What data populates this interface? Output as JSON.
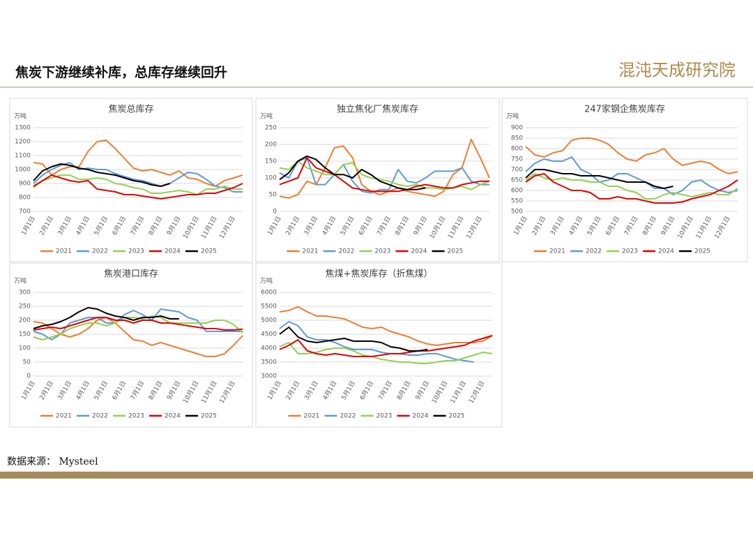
{
  "header": {
    "title": "焦炭下游继续补库，总库存继续回升",
    "logo": "混沌天成研究院"
  },
  "footer": {
    "source": "数据来源： Mysteel"
  },
  "chart_data": [
    {
      "type": "line",
      "title": "焦炭总库存",
      "y_label": "万吨",
      "categories": [
        "1月1日",
        null,
        "2月1日",
        null,
        "3月1日",
        null,
        "4月1日",
        null,
        "5月1日",
        null,
        "6月1日",
        null,
        "7月1日",
        null,
        "8月1日",
        null,
        "9月1日",
        null,
        "10月1日",
        null,
        "11月1日",
        null,
        "12月1日",
        null
      ],
      "ylim": [
        700,
        1300
      ],
      "yticks": [
        700,
        800,
        900,
        1000,
        1100,
        1200,
        1300
      ],
      "grid": true,
      "series": [
        {
          "name": "2021",
          "color": "#ED7D31",
          "values": [
            1050,
            1040,
            960,
            1000,
            1020,
            1020,
            1130,
            1200,
            1210,
            1150,
            1080,
            1010,
            990,
            1000,
            980,
            960,
            990,
            940,
            930,
            900,
            880,
            920,
            940,
            960
          ]
        },
        {
          "name": "2022",
          "color": "#5B9BD5",
          "values": [
            900,
            960,
            1000,
            1030,
            1050,
            1000,
            1010,
            1000,
            1000,
            970,
            950,
            930,
            920,
            900,
            880,
            900,
            940,
            980,
            970,
            930,
            880,
            870,
            840,
            840
          ]
        },
        {
          "name": "2023",
          "color": "#92D050",
          "values": [
            870,
            920,
            940,
            960,
            960,
            930,
            930,
            940,
            930,
            900,
            890,
            870,
            860,
            830,
            830,
            840,
            850,
            840,
            820,
            860,
            860,
            880,
            860,
            860
          ]
        },
        {
          "name": "2024",
          "color": "#E00000",
          "values": [
            880,
            920,
            960,
            940,
            920,
            910,
            920,
            860,
            850,
            840,
            820,
            820,
            810,
            800,
            790,
            800,
            810,
            820,
            820,
            830,
            830,
            850,
            870,
            900
          ]
        },
        {
          "name": "2025",
          "color": "#000000",
          "values": [
            920,
            990,
            1020,
            1040,
            1030,
            1010,
            1000,
            980,
            970,
            960,
            940,
            920,
            910,
            890,
            880,
            900,
            null,
            null,
            null,
            null,
            null,
            null,
            null,
            null
          ]
        }
      ]
    },
    {
      "type": "line",
      "title": "独立焦化厂焦炭库存",
      "y_label": "万吨",
      "categories": [
        "1月1日",
        null,
        "2月1日",
        null,
        "3月1日",
        null,
        "4月1日",
        null,
        "5月1日",
        null,
        "6月1日",
        null,
        "7月1日",
        null,
        "8月1日",
        null,
        "9月1日",
        null,
        "10月1日",
        null,
        "11月1日",
        null,
        "12月1日",
        null
      ],
      "ylim": [
        0,
        250
      ],
      "yticks": [
        0,
        50,
        100,
        150,
        200,
        250
      ],
      "grid": true,
      "series": [
        {
          "name": "2021",
          "color": "#ED7D31",
          "values": [
            45,
            40,
            50,
            90,
            80,
            130,
            190,
            195,
            160,
            80,
            60,
            50,
            60,
            70,
            60,
            55,
            50,
            45,
            60,
            110,
            130,
            215,
            160,
            100
          ]
        },
        {
          "name": "2022",
          "color": "#5B9BD5",
          "values": [
            115,
            100,
            150,
            160,
            80,
            80,
            110,
            140,
            90,
            60,
            55,
            65,
            65,
            125,
            90,
            85,
            100,
            120,
            120,
            120,
            130,
            90,
            80,
            80
          ]
        },
        {
          "name": "2023",
          "color": "#92D050",
          "values": [
            130,
            125,
            150,
            130,
            120,
            110,
            110,
            140,
            145,
            110,
            100,
            95,
            90,
            80,
            75,
            80,
            70,
            70,
            65,
            70,
            75,
            65,
            80,
            90
          ]
        },
        {
          "name": "2024",
          "color": "#E00000",
          "values": [
            80,
            90,
            100,
            160,
            130,
            120,
            110,
            90,
            70,
            65,
            60,
            60,
            60,
            60,
            65,
            75,
            80,
            75,
            70,
            70,
            80,
            85,
            90,
            90
          ]
        },
        {
          "name": "2025",
          "color": "#000000",
          "values": [
            95,
            115,
            150,
            165,
            155,
            130,
            110,
            110,
            100,
            125,
            110,
            90,
            80,
            70,
            65,
            65,
            70,
            null,
            null,
            null,
            null,
            null,
            null,
            null
          ]
        }
      ]
    },
    {
      "type": "line",
      "title": "247家钢企焦炭库存",
      "y_label": "万吨",
      "categories": [
        "1月1日",
        null,
        "2月1日",
        null,
        "3月1日",
        null,
        "4月1日",
        null,
        "5月1日",
        null,
        "6月1日",
        null,
        "7月1日",
        null,
        "8月1日",
        null,
        "9月1日",
        null,
        "10月1日",
        null,
        "11月1日",
        null,
        "12月1日",
        null
      ],
      "ylim": [
        500,
        900
      ],
      "yticks": [
        500,
        550,
        600,
        650,
        700,
        750,
        800,
        850,
        900
      ],
      "grid": true,
      "series": [
        {
          "name": "2021",
          "color": "#ED7D31",
          "values": [
            810,
            770,
            760,
            780,
            790,
            840,
            850,
            850,
            840,
            820,
            780,
            750,
            740,
            770,
            780,
            800,
            750,
            720,
            730,
            740,
            730,
            700,
            680,
            690
          ]
        },
        {
          "name": "2022",
          "color": "#5B9BD5",
          "values": [
            690,
            730,
            750,
            740,
            740,
            760,
            700,
            680,
            640,
            650,
            680,
            680,
            660,
            640,
            610,
            610,
            580,
            600,
            640,
            650,
            620,
            600,
            590,
            600
          ]
        },
        {
          "name": "2023",
          "color": "#92D050",
          "values": [
            650,
            680,
            660,
            650,
            660,
            650,
            650,
            640,
            640,
            620,
            620,
            600,
            590,
            560,
            560,
            580,
            590,
            580,
            570,
            580,
            590,
            580,
            580,
            610
          ]
        },
        {
          "name": "2024",
          "color": "#E00000",
          "values": [
            640,
            670,
            680,
            640,
            620,
            600,
            600,
            590,
            560,
            560,
            570,
            560,
            560,
            550,
            540,
            540,
            540,
            545,
            560,
            570,
            580,
            600,
            620,
            650
          ]
        },
        {
          "name": "2025",
          "color": "#000000",
          "values": [
            660,
            700,
            700,
            690,
            680,
            680,
            670,
            670,
            670,
            660,
            650,
            640,
            640,
            640,
            620,
            610,
            620,
            null,
            null,
            null,
            null,
            null,
            null,
            null
          ]
        }
      ]
    },
    {
      "type": "line",
      "title": "焦炭港口库存",
      "y_label": "万吨",
      "categories": [
        "1月1日",
        null,
        "2月1日",
        null,
        "3月1日",
        null,
        "4月1日",
        null,
        "5月1日",
        null,
        "6月1日",
        null,
        "7月1日",
        null,
        "8月1日",
        null,
        "9月1日",
        null,
        "10月1日",
        null,
        "11月1日",
        null,
        "12月1日",
        null
      ],
      "ylim": [
        0,
        300
      ],
      "yticks": [
        0,
        50,
        100,
        150,
        200,
        250,
        300
      ],
      "grid": true,
      "series": [
        {
          "name": "2021",
          "color": "#ED7D31",
          "values": [
            195,
            190,
            170,
            150,
            140,
            150,
            170,
            200,
            210,
            190,
            160,
            130,
            125,
            110,
            120,
            110,
            100,
            90,
            80,
            70,
            70,
            80,
            110,
            145
          ]
        },
        {
          "name": "2022",
          "color": "#5B9BD5",
          "values": [
            160,
            150,
            130,
            150,
            190,
            200,
            210,
            210,
            190,
            190,
            220,
            235,
            220,
            200,
            240,
            235,
            230,
            210,
            200,
            160,
            160,
            160,
            160,
            160
          ]
        },
        {
          "name": "2023",
          "color": "#92D050",
          "values": [
            140,
            130,
            140,
            150,
            170,
            180,
            190,
            190,
            180,
            190,
            210,
            210,
            205,
            215,
            210,
            190,
            190,
            190,
            190,
            190,
            200,
            200,
            185,
            155
          ]
        },
        {
          "name": "2024",
          "color": "#E00000",
          "values": [
            165,
            170,
            175,
            170,
            180,
            190,
            200,
            210,
            210,
            200,
            200,
            190,
            200,
            200,
            190,
            190,
            185,
            180,
            175,
            170,
            170,
            165,
            165,
            168
          ]
        },
        {
          "name": "2025",
          "color": "#000000",
          "values": [
            170,
            180,
            185,
            195,
            210,
            230,
            245,
            240,
            225,
            215,
            210,
            200,
            210,
            210,
            215,
            205,
            205,
            null,
            null,
            null,
            null,
            null,
            null,
            null
          ]
        }
      ]
    },
    {
      "type": "line",
      "title": "焦煤+焦炭库存（折焦煤）",
      "y_label": "万吨",
      "categories": [
        "1月1日",
        null,
        "2月1日",
        null,
        "3月1日",
        null,
        "4月1日",
        null,
        "5月1日",
        null,
        "6月1日",
        null,
        "7月1日",
        null,
        "8月1日",
        null,
        "9月1日",
        null,
        "10月1日",
        null,
        "11月1日",
        null,
        "12月1日",
        null
      ],
      "ylim": [
        3000,
        6000
      ],
      "yticks": [
        3000,
        3500,
        4000,
        4500,
        5000,
        5500,
        6000
      ],
      "grid": true,
      "series": [
        {
          "name": "2021",
          "color": "#ED7D31",
          "values": [
            5300,
            5350,
            5480,
            5300,
            5150,
            5150,
            5100,
            5050,
            4900,
            4750,
            4700,
            4750,
            4600,
            4500,
            4400,
            4250,
            4150,
            4100,
            4150,
            4200,
            4200,
            4200,
            4250,
            4450
          ]
        },
        {
          "name": "2022",
          "color": "#5B9BD5",
          "values": [
            4700,
            4950,
            4800,
            4400,
            4300,
            4300,
            4200,
            4050,
            3950,
            3950,
            3950,
            3850,
            3800,
            3800,
            3750,
            3750,
            3800,
            3800,
            3700,
            3600,
            3550,
            3500,
            null,
            null
          ]
        },
        {
          "name": "2023",
          "color": "#92D050",
          "values": [
            4050,
            4200,
            3800,
            3800,
            3850,
            3950,
            4000,
            4000,
            3900,
            3750,
            3700,
            3600,
            3550,
            3500,
            3500,
            3450,
            3450,
            3500,
            3550,
            3550,
            3650,
            3750,
            3850,
            3800
          ]
        },
        {
          "name": "2024",
          "color": "#E00000",
          "values": [
            3950,
            4100,
            4300,
            3900,
            3800,
            3750,
            3800,
            3750,
            3700,
            3700,
            3700,
            3750,
            3800,
            3800,
            3850,
            3900,
            3900,
            3950,
            4000,
            4050,
            4100,
            4250,
            4350,
            4450
          ]
        },
        {
          "name": "2025",
          "color": "#000000",
          "values": [
            4500,
            4750,
            4400,
            4250,
            4200,
            4250,
            4300,
            4350,
            4250,
            4250,
            4250,
            4200,
            4050,
            4000,
            3900,
            3900,
            3950,
            null,
            null,
            null,
            null,
            null,
            null,
            null
          ]
        }
      ]
    }
  ]
}
